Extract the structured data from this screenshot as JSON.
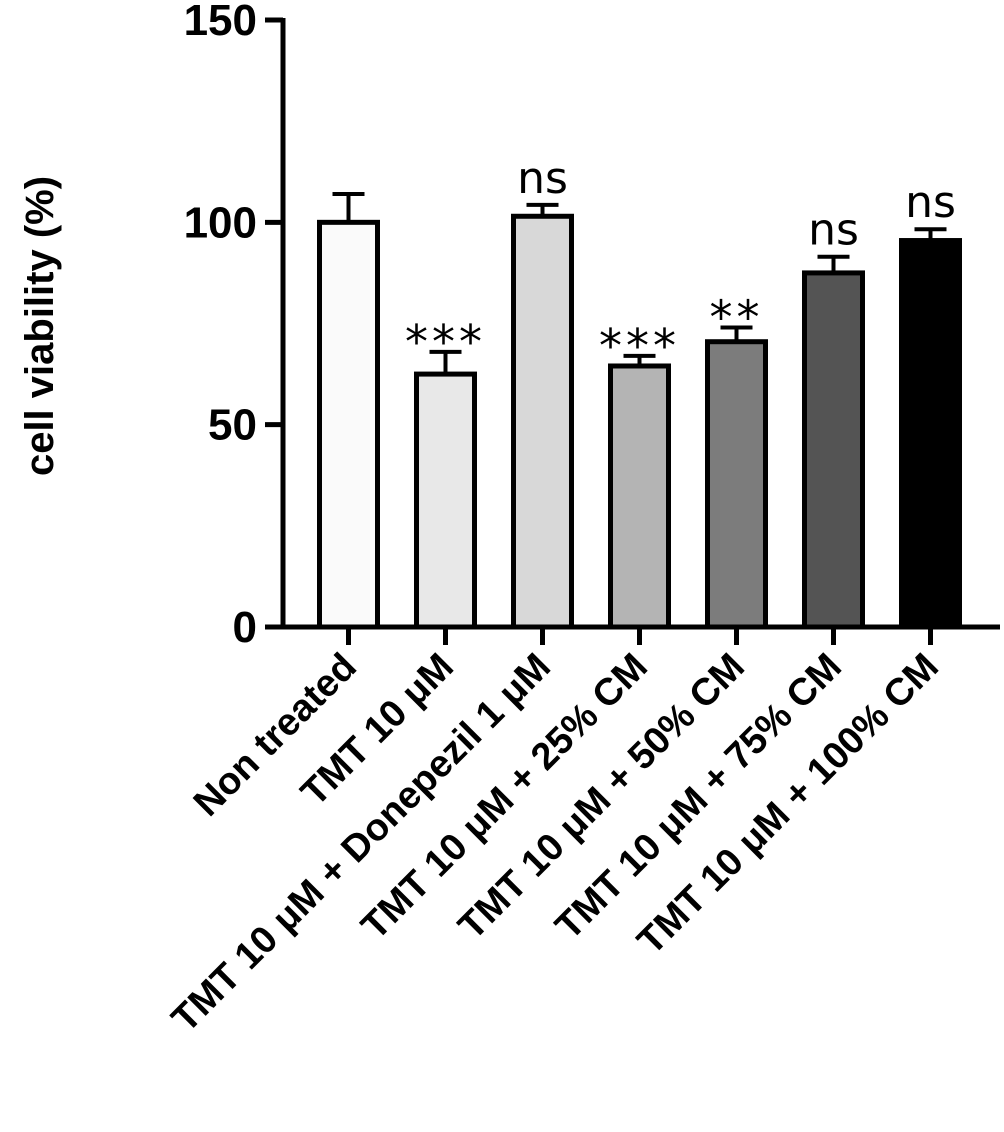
{
  "chart_data": {
    "type": "bar",
    "ylabel": "cell viability (%)",
    "xlabel": "",
    "ylim": [
      0,
      150
    ],
    "yticks": [
      "0",
      "50",
      "100",
      "150"
    ],
    "grid": false,
    "categories": [
      "Non treated",
      "TMT 10  μM",
      "TMT 10  μM + Donepezil 1 μM",
      "TMT 10  μM + 25% CM",
      "TMT 10  μM + 50% CM",
      "TMT 10  μM + 75% CM",
      "TMT 10  μM + 100% CM"
    ],
    "values": [
      100,
      62.5,
      101.5,
      64.5,
      70.5,
      87.5,
      95.5
    ],
    "errors": [
      7,
      5.5,
      2.8,
      2.5,
      3.5,
      4,
      2.8
    ],
    "significance": [
      "",
      "***",
      "ns",
      "***",
      "**",
      "ns",
      "ns"
    ],
    "bar_colors": [
      "#fafafa",
      "#e8e8e8",
      "#d8d8d8",
      "#b4b4b4",
      "#7c7c7c",
      "#545454",
      "#000000"
    ]
  }
}
